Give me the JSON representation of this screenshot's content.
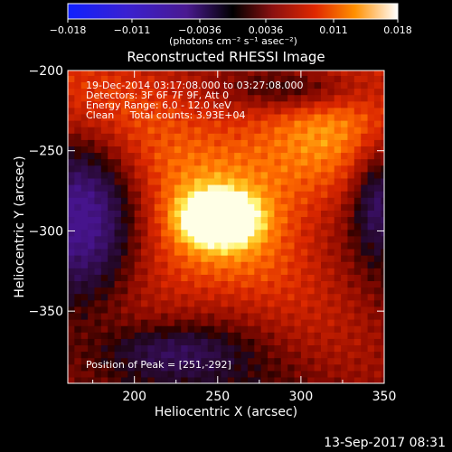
{
  "colorbar": {
    "ticks": [
      "-0.018",
      "-0.011",
      "-0.0036",
      "0.0036",
      "0.011",
      "0.018"
    ],
    "tick_values": [
      -0.018,
      -0.011,
      -0.0036,
      0.0036,
      0.011,
      0.018
    ],
    "range": [
      -0.018,
      0.018
    ],
    "unit_label": "(photons cm⁻² s⁻¹ asec⁻²)"
  },
  "chart_data": {
    "type": "heatmap",
    "title": "Reconstructed RHESSI Image",
    "xlabel": "Heliocentric X (arcsec)",
    "ylabel": "Heliocentric Y (arcsec)",
    "xlim": [
      160,
      350
    ],
    "ylim": [
      -395,
      -200
    ],
    "xticks": [
      200,
      250,
      300,
      350
    ],
    "yticks": [
      -200,
      -250,
      -300,
      -350
    ],
    "xtick_labels": [
      "200",
      "250",
      "300",
      "350"
    ],
    "ytick_labels": [
      "−200",
      "−250",
      "−300",
      "−350"
    ],
    "peak": {
      "x": 251,
      "y": -292
    },
    "colormap": "rhessi-red-temperature",
    "colors": {
      "negative": "#3a1488",
      "positive_high": "#ffff60",
      "background": "#000000"
    },
    "info_lines": [
      "19-Dec-2014 03:17:08.000 to 03:27:08.000",
      "Detectors: 3F 6F 7F 9F, Att 0",
      "Energy Range: 6.0 - 12.0 keV",
      "Clean     Total counts: 3.93E+04"
    ],
    "peak_text": "Position of Peak = [251,-292]"
  },
  "footer": {
    "timestamp": "13-Sep-2017 08:31"
  }
}
